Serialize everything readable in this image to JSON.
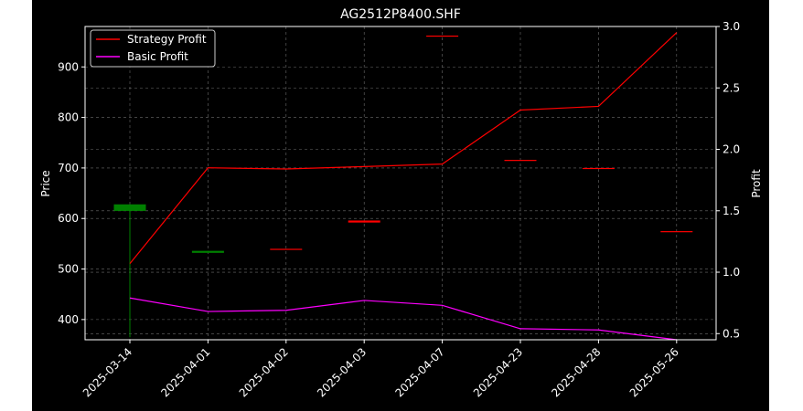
{
  "chart_data": {
    "type": "line",
    "title": "AG2512P8400.SHF",
    "xlabel": "",
    "ylabel_left": "Price",
    "ylabel_right": "Profit",
    "categories": [
      "2025-03-14",
      "2025-04-01",
      "2025-04-02",
      "2025-04-03",
      "2025-04-07",
      "2025-04-23",
      "2025-04-28",
      "2025-05-26"
    ],
    "left_axis": {
      "ylim": [
        360,
        980
      ],
      "ticks": [
        400,
        500,
        600,
        700,
        800,
        900
      ]
    },
    "right_axis": {
      "ylim": [
        0.45,
        3.0
      ],
      "ticks": [
        0.5,
        1.0,
        1.5,
        2.0,
        2.5,
        3.0
      ],
      "tick_labels": [
        "0.5",
        "1.0",
        "1.5",
        "2.0",
        "2.5",
        "3.0"
      ]
    },
    "grid": true,
    "legend_placement": "top-left",
    "candles": [
      {
        "date": "2025-03-14",
        "open": 615,
        "close": 628,
        "high": 628,
        "low": 365,
        "color": "#008000"
      },
      {
        "date": "2025-04-01",
        "open": 532,
        "close": 536,
        "high": 536,
        "low": 532,
        "color": "#008000"
      },
      {
        "date": "2025-04-02",
        "open": 540,
        "close": 540,
        "high": 540,
        "low": 540,
        "color": "#ff0000"
      },
      {
        "date": "2025-04-03",
        "open": 596,
        "close": 592,
        "high": 596,
        "low": 592,
        "color": "#ff0000"
      },
      {
        "date": "2025-04-07",
        "open": 962,
        "close": 962,
        "high": 962,
        "low": 962,
        "color": "#ff0000"
      },
      {
        "date": "2025-04-23",
        "open": 716,
        "close": 716,
        "high": 716,
        "low": 716,
        "color": "#ff0000"
      },
      {
        "date": "2025-04-28",
        "open": 700,
        "close": 700,
        "high": 700,
        "low": 700,
        "color": "#ff0000"
      },
      {
        "date": "2025-05-26",
        "open": 575,
        "close": 575,
        "high": 575,
        "low": 575,
        "color": "#ff0000"
      }
    ],
    "series": [
      {
        "name": "Strategy Profit",
        "axis": "right",
        "color": "#ff0000",
        "values": [
          1.07,
          1.85,
          1.84,
          1.86,
          1.88,
          2.32,
          2.35,
          2.95
        ]
      },
      {
        "name": "Basic Profit",
        "axis": "right",
        "color": "#ff00ff",
        "values": [
          0.79,
          0.68,
          0.69,
          0.77,
          0.73,
          0.54,
          0.53,
          0.45
        ]
      }
    ]
  }
}
